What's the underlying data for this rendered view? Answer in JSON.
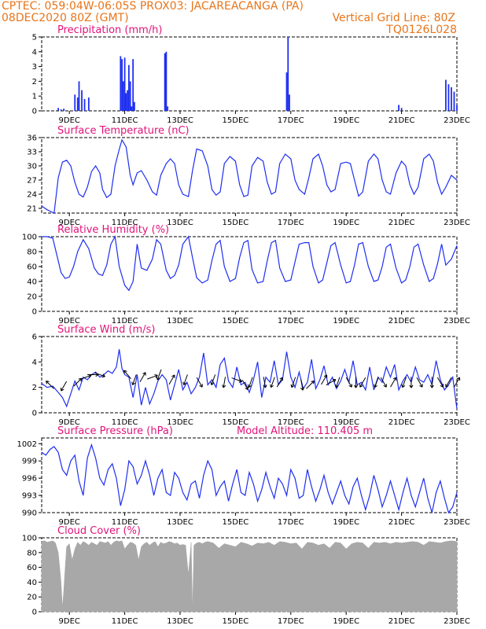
{
  "header": {
    "line1_left": "CPTEC:   059:04W-06:05S   PROX03: JACAREACANGA (PA)",
    "line2_left": "08DEC2020 80Z (GMT)",
    "line2_right": "Vertical Grid Line: 80Z",
    "line3_right": "TQ0126L028"
  },
  "colors": {
    "header": "#e8751a",
    "title": "#e0147a",
    "series": "#1f2ff0",
    "cloud": "#a8a8a8",
    "arrow": "#000000"
  },
  "x_ticks": [
    "9DEC",
    "11DEC",
    "13DEC",
    "15DEC",
    "17DEC",
    "19DEC",
    "21DEC",
    "23DEC"
  ],
  "chart_data": [
    {
      "type": "bar",
      "title": "Precipitation (mm/h)",
      "ylim": [
        0,
        5
      ],
      "y_ticks": [
        "0",
        "1",
        "2",
        "3",
        "4",
        "5"
      ],
      "x": [
        "08.6",
        "08.7",
        "08.8",
        "09.2",
        "09.3",
        "09.35",
        "09.45",
        "09.55",
        "09.7",
        "10.85",
        "10.9",
        "10.95",
        "11.0",
        "11.05",
        "11.1",
        "11.15",
        "11.2",
        "11.25",
        "11.3",
        "11.35",
        "12.45",
        "12.5",
        "12.55",
        "16.85",
        "16.9",
        "16.95",
        "20.9",
        "21.0",
        "22.6",
        "22.7",
        "22.8",
        "22.9",
        "23.0"
      ],
      "values": [
        0.2,
        0.1,
        0.15,
        1.1,
        0.9,
        2.0,
        1.4,
        0.8,
        0.9,
        3.7,
        3.5,
        2.0,
        3.6,
        1.2,
        1.4,
        3.1,
        2.0,
        0.3,
        3.5,
        0.6,
        3.9,
        4.0,
        0.3,
        2.6,
        5.0,
        1.1,
        0.4,
        0.2,
        2.1,
        1.8,
        1.6,
        1.3,
        0.4
      ]
    },
    {
      "type": "line",
      "title": "Surface Temperature (nC)",
      "ylim": [
        20,
        36
      ],
      "y_ticks": [
        "21",
        "24",
        "27",
        "30",
        "33",
        "36"
      ],
      "x": [
        8.0,
        8.2,
        8.45,
        8.6,
        8.75,
        8.9,
        9.05,
        9.2,
        9.35,
        9.5,
        9.65,
        9.8,
        9.95,
        10.1,
        10.2,
        10.35,
        10.5,
        10.65,
        10.8,
        10.9,
        11.05,
        11.2,
        11.3,
        11.45,
        11.6,
        11.8,
        12.0,
        12.15,
        12.3,
        12.5,
        12.65,
        12.8,
        12.95,
        13.1,
        13.3,
        13.45,
        13.6,
        13.8,
        14.0,
        14.15,
        14.3,
        14.45,
        14.6,
        14.8,
        15.0,
        15.15,
        15.3,
        15.45,
        15.6,
        15.8,
        16.0,
        16.15,
        16.3,
        16.45,
        16.6,
        16.8,
        17.0,
        17.15,
        17.3,
        17.5,
        17.65,
        17.8,
        18.0,
        18.15,
        18.3,
        18.45,
        18.6,
        18.8,
        19.0,
        19.15,
        19.3,
        19.45,
        19.6,
        19.8,
        20.0,
        20.15,
        20.3,
        20.45,
        20.6,
        20.8,
        21.0,
        21.15,
        21.3,
        21.45,
        21.6,
        21.8,
        22.0,
        22.15,
        22.3,
        22.45,
        22.6,
        22.8,
        23.0
      ],
      "values": [
        21.5,
        20.7,
        20.0,
        27.5,
        30.8,
        31.2,
        30.0,
        26.5,
        24.0,
        23.4,
        25.5,
        28.8,
        30.0,
        28.5,
        25.0,
        23.3,
        24.0,
        30.0,
        33.5,
        35.5,
        34.0,
        28.0,
        26.0,
        28.5,
        29.0,
        27.0,
        24.5,
        23.8,
        28.0,
        30.5,
        31.5,
        30.5,
        26.0,
        24.0,
        23.5,
        29.0,
        33.6,
        33.2,
        30.0,
        25.0,
        23.8,
        24.5,
        30.5,
        32.0,
        31.0,
        26.0,
        23.5,
        23.8,
        30.0,
        31.8,
        31.0,
        26.5,
        24.0,
        24.5,
        30.5,
        32.5,
        31.5,
        27.0,
        25.0,
        24.0,
        27.5,
        31.5,
        32.5,
        30.0,
        26.0,
        24.5,
        25.0,
        30.5,
        30.8,
        30.5,
        27.0,
        23.6,
        24.5,
        31.0,
        32.5,
        31.5,
        27.0,
        24.5,
        24.0,
        28.5,
        31.0,
        30.0,
        26.0,
        24.0,
        25.5,
        31.5,
        32.5,
        31.0,
        26.5,
        24.0,
        25.5,
        28.0,
        27.0
      ]
    },
    {
      "type": "line",
      "title": "Relative Humidity (%)",
      "ylim": [
        0,
        100
      ],
      "y_ticks": [
        "0",
        "20",
        "40",
        "60",
        "80",
        "100"
      ],
      "x": [
        8.0,
        8.2,
        8.4,
        8.55,
        8.7,
        8.85,
        9.0,
        9.15,
        9.3,
        9.5,
        9.7,
        9.9,
        10.05,
        10.2,
        10.35,
        10.5,
        10.65,
        10.8,
        11.0,
        11.15,
        11.3,
        11.45,
        11.6,
        11.8,
        12.0,
        12.15,
        12.3,
        12.5,
        12.65,
        12.8,
        12.95,
        13.1,
        13.3,
        13.45,
        13.6,
        13.8,
        14.0,
        14.15,
        14.3,
        14.45,
        14.6,
        14.8,
        15.0,
        15.15,
        15.3,
        15.45,
        15.6,
        15.8,
        16.0,
        16.15,
        16.3,
        16.45,
        16.6,
        16.8,
        17.0,
        17.15,
        17.3,
        17.5,
        17.65,
        17.8,
        18.0,
        18.15,
        18.3,
        18.45,
        18.6,
        18.8,
        19.0,
        19.15,
        19.3,
        19.45,
        19.6,
        19.8,
        20.0,
        20.15,
        20.3,
        20.45,
        20.6,
        20.8,
        21.0,
        21.15,
        21.3,
        21.45,
        21.6,
        21.8,
        22.0,
        22.15,
        22.3,
        22.45,
        22.6,
        22.8,
        23.0
      ],
      "values": [
        100,
        100,
        98,
        75,
        52,
        44,
        46,
        60,
        80,
        96,
        84,
        58,
        50,
        48,
        62,
        90,
        100,
        60,
        35,
        28,
        40,
        90,
        58,
        55,
        70,
        96,
        90,
        55,
        44,
        48,
        62,
        90,
        100,
        72,
        45,
        38,
        42,
        68,
        90,
        95,
        60,
        40,
        44,
        72,
        92,
        95,
        56,
        38,
        40,
        68,
        92,
        95,
        58,
        40,
        42,
        66,
        90,
        92,
        92,
        60,
        38,
        42,
        65,
        88,
        92,
        62,
        38,
        40,
        62,
        90,
        92,
        60,
        40,
        42,
        60,
        86,
        90,
        58,
        38,
        42,
        60,
        86,
        90,
        62,
        40,
        44,
        64,
        90,
        62,
        70,
        88
      ]
    },
    {
      "type": "line",
      "title": "Surface Wind (m/s)",
      "ylim": [
        0,
        6
      ],
      "y_ticks": [
        "0",
        "2",
        "4",
        "6"
      ],
      "x": [
        8.0,
        8.2,
        8.4,
        8.6,
        8.75,
        8.9,
        9.05,
        9.2,
        9.35,
        9.5,
        9.65,
        9.8,
        9.95,
        10.1,
        10.25,
        10.4,
        10.55,
        10.7,
        10.8,
        10.9,
        11.0,
        11.15,
        11.3,
        11.45,
        11.6,
        11.75,
        11.9,
        12.05,
        12.2,
        12.35,
        12.5,
        12.65,
        12.8,
        12.95,
        13.1,
        13.25,
        13.4,
        13.55,
        13.7,
        13.85,
        14.0,
        14.15,
        14.3,
        14.45,
        14.6,
        14.75,
        14.9,
        15.05,
        15.2,
        15.35,
        15.5,
        15.65,
        15.8,
        15.95,
        16.1,
        16.25,
        16.4,
        16.55,
        16.7,
        16.85,
        17.0,
        17.15,
        17.3,
        17.45,
        17.6,
        17.75,
        17.9,
        18.05,
        18.2,
        18.35,
        18.5,
        18.65,
        18.8,
        18.95,
        19.1,
        19.25,
        19.4,
        19.55,
        19.7,
        19.85,
        20.0,
        20.15,
        20.3,
        20.45,
        20.6,
        20.75,
        20.9,
        21.05,
        21.2,
        21.35,
        21.5,
        21.65,
        21.8,
        21.95,
        22.1,
        22.25,
        22.4,
        22.55,
        22.7,
        22.85,
        23.0
      ],
      "values": [
        2.3,
        2.0,
        2.1,
        1.6,
        1.2,
        0.5,
        1.5,
        2.5,
        1.8,
        2.8,
        2.6,
        3.0,
        3.2,
        2.8,
        3.0,
        3.3,
        3.1,
        3.6,
        5.0,
        3.5,
        3.0,
        2.8,
        1.2,
        3.0,
        0.6,
        2.0,
        0.7,
        1.5,
        2.5,
        3.0,
        2.6,
        1.0,
        2.2,
        3.4,
        1.8,
        2.4,
        1.5,
        2.0,
        2.8,
        4.7,
        2.2,
        2.6,
        2.0,
        3.8,
        4.3,
        2.5,
        2.0,
        3.6,
        2.2,
        2.4,
        1.6,
        2.6,
        4.0,
        1.2,
        2.8,
        2.4,
        4.1,
        2.2,
        2.6,
        4.8,
        2.8,
        2.0,
        3.2,
        1.9,
        2.4,
        4.2,
        1.9,
        2.6,
        3.7,
        2.2,
        2.8,
        1.9,
        2.5,
        3.4,
        2.4,
        4.1,
        2.2,
        2.4,
        1.8,
        3.6,
        1.8,
        2.8,
        2.4,
        3.6,
        2.8,
        3.8,
        1.8,
        2.5,
        3.0,
        2.4,
        3.6,
        2.6,
        2.4,
        3.0,
        2.2,
        4.1,
        2.6,
        1.8,
        2.2,
        2.8,
        0.3
      ],
      "arrow_x": [
        8.3,
        8.8,
        9.3,
        9.6,
        9.85,
        10.1,
        11.1,
        11.35,
        11.65,
        12.0,
        12.25,
        12.7,
        13.2,
        13.7,
        14.2,
        14.6,
        15.05,
        15.35,
        15.55,
        16.05,
        16.35,
        16.6,
        17.1,
        17.4,
        17.7,
        18.2,
        18.45,
        18.7,
        19.1,
        19.35,
        19.6,
        20.1,
        20.35,
        20.7,
        21.1,
        21.35,
        21.65,
        22.1,
        22.4,
        22.7,
        23.0
      ],
      "arrow_y": [
        2.2,
        2.1,
        2.4,
        2.8,
        3.0,
        3.0,
        3.0,
        2.6,
        2.8,
        2.8,
        3.0,
        2.6,
        2.6,
        2.4,
        2.6,
        2.4,
        2.6,
        2.2,
        2.4,
        2.4,
        2.4,
        2.4,
        2.4,
        2.2,
        2.2,
        2.6,
        2.4,
        2.4,
        2.4,
        2.4,
        2.4,
        2.4,
        2.4,
        2.4,
        2.4,
        2.4,
        2.4,
        2.4,
        2.4,
        2.4,
        2.4
      ],
      "arrow_dir_deg": [
        135,
        240,
        45,
        20,
        0,
        340,
        130,
        250,
        60,
        20,
        250,
        60,
        250,
        300,
        250,
        260,
        340,
        300,
        250,
        280,
        250,
        60,
        250,
        280,
        45,
        60,
        30,
        250,
        300,
        270,
        240,
        250,
        300,
        60,
        250,
        270,
        300,
        270,
        300,
        240,
        60
      ]
    },
    {
      "type": "line",
      "title": "Surface Pressure (hPa)",
      "annotation": "Model Altitude: 110.405 m",
      "ylim": [
        990,
        1003
      ],
      "y_ticks": [
        "990",
        "993",
        "996",
        "999",
        "1002"
      ],
      "x": [
        8.0,
        8.15,
        8.3,
        8.45,
        8.6,
        8.75,
        8.9,
        9.05,
        9.2,
        9.35,
        9.5,
        9.65,
        9.8,
        9.95,
        10.1,
        10.25,
        10.4,
        10.55,
        10.7,
        10.85,
        11.0,
        11.15,
        11.3,
        11.45,
        11.6,
        11.75,
        11.9,
        12.05,
        12.2,
        12.35,
        12.5,
        12.65,
        12.8,
        12.95,
        13.1,
        13.25,
        13.4,
        13.55,
        13.7,
        13.85,
        14.0,
        14.15,
        14.3,
        14.45,
        14.6,
        14.75,
        14.9,
        15.05,
        15.2,
        15.35,
        15.5,
        15.65,
        15.8,
        15.95,
        16.1,
        16.25,
        16.4,
        16.55,
        16.7,
        16.85,
        17.0,
        17.15,
        17.3,
        17.45,
        17.6,
        17.75,
        17.9,
        18.05,
        18.2,
        18.35,
        18.5,
        18.65,
        18.8,
        18.95,
        19.1,
        19.25,
        19.4,
        19.55,
        19.7,
        19.85,
        20.0,
        20.15,
        20.3,
        20.45,
        20.6,
        20.75,
        20.9,
        21.05,
        21.2,
        21.35,
        21.5,
        21.65,
        21.8,
        21.95,
        22.1,
        22.25,
        22.4,
        22.55,
        22.7,
        22.85,
        23.0
      ],
      "values": [
        1000.5,
        1000.0,
        1001.0,
        1001.5,
        1000.5,
        997.5,
        996.5,
        999.0,
        1000.0,
        995.5,
        993.0,
        999.5,
        1001.8,
        999.5,
        996.0,
        994.8,
        997.5,
        998.5,
        996.0,
        991.2,
        994.0,
        999.0,
        998.0,
        995.0,
        996.5,
        999.0,
        996.5,
        993.0,
        996.0,
        997.5,
        993.5,
        993.0,
        997.0,
        996.0,
        993.5,
        992.2,
        995.0,
        995.5,
        992.5,
        996.5,
        999.0,
        997.5,
        993.0,
        994.5,
        995.5,
        992.0,
        995.0,
        997.5,
        993.5,
        993.0,
        997.0,
        995.0,
        992.0,
        994.0,
        997.0,
        994.5,
        992.5,
        996.0,
        995.0,
        993.0,
        997.5,
        996.0,
        992.5,
        993.0,
        997.5,
        994.5,
        992.0,
        994.0,
        996.5,
        993.5,
        991.5,
        993.5,
        995.5,
        993.0,
        991.5,
        994.5,
        996.0,
        993.0,
        990.5,
        993.0,
        996.5,
        994.0,
        991.0,
        993.0,
        995.5,
        993.0,
        990.5,
        993.5,
        996.0,
        993.0,
        991.0,
        993.5,
        996.0,
        992.5,
        990.0,
        993.5,
        995.5,
        992.5,
        990.0,
        991.0,
        993.5
      ]
    },
    {
      "type": "area",
      "title": "Cloud Cover (%)",
      "ylim": [
        0,
        100
      ],
      "y_ticks": [
        "0",
        "20",
        "40",
        "60",
        "80",
        "100"
      ],
      "x": [
        8.0,
        8.1,
        8.2,
        8.3,
        8.4,
        8.5,
        8.6,
        8.7,
        8.75,
        8.8,
        8.85,
        8.9,
        9.0,
        9.1,
        9.2,
        9.3,
        9.4,
        9.5,
        9.6,
        9.7,
        9.8,
        9.9,
        10.0,
        10.1,
        10.2,
        10.3,
        10.4,
        10.5,
        10.6,
        10.7,
        10.8,
        10.9,
        11.0,
        11.1,
        11.2,
        11.3,
        11.4,
        11.5,
        11.6,
        11.7,
        11.8,
        11.9,
        12.0,
        12.1,
        12.2,
        12.3,
        12.4,
        12.5,
        12.6,
        12.7,
        12.8,
        12.9,
        13.0,
        13.1,
        13.2,
        13.3,
        13.4,
        13.45,
        13.5,
        13.6,
        13.7,
        13.8,
        13.9,
        14.0,
        14.2,
        14.4,
        14.6,
        14.8,
        15.0,
        15.2,
        15.4,
        15.6,
        15.8,
        16.0,
        16.2,
        16.4,
        16.6,
        16.8,
        17.0,
        17.2,
        17.4,
        17.6,
        17.8,
        18.0,
        18.2,
        18.4,
        18.6,
        18.8,
        19.0,
        19.2,
        19.4,
        19.6,
        19.8,
        20.0,
        20.2,
        20.4,
        20.6,
        20.8,
        21.0,
        21.2,
        21.4,
        21.6,
        21.8,
        22.0,
        22.2,
        22.4,
        22.6,
        22.8,
        23.0
      ],
      "values": [
        95,
        96,
        94,
        95,
        96,
        93,
        80,
        40,
        5,
        30,
        60,
        88,
        92,
        70,
        85,
        94,
        90,
        95,
        93,
        90,
        94,
        92,
        90,
        95,
        94,
        93,
        95,
        90,
        94,
        96,
        95,
        96,
        85,
        90,
        94,
        93,
        90,
        70,
        88,
        92,
        94,
        90,
        93,
        95,
        88,
        94,
        92,
        93,
        95,
        94,
        92,
        93,
        90,
        91,
        90,
        50,
        94,
        2,
        90,
        93,
        94,
        92,
        94,
        95,
        93,
        86,
        92,
        90,
        88,
        94,
        92,
        89,
        93,
        92,
        94,
        90,
        95,
        94,
        92,
        93,
        85,
        94,
        93,
        90,
        92,
        86,
        94,
        93,
        85,
        92,
        94,
        93,
        86,
        94,
        93,
        94,
        92,
        94,
        93,
        94,
        95,
        94,
        90,
        95,
        94,
        93,
        95,
        96,
        95
      ]
    }
  ]
}
